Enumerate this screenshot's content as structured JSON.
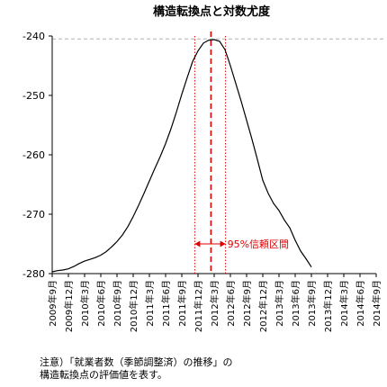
{
  "chart_data": {
    "type": "line",
    "title": "構造転換点と対数尤度",
    "xlabel": "",
    "ylabel": "",
    "ylim": [
      -280,
      -240
    ],
    "yticks": [
      -240,
      -250,
      -260,
      -270,
      -280
    ],
    "ytick_labels": [
      "-240",
      "-250",
      "-260",
      "-270",
      "-280"
    ],
    "xlim": [
      0,
      60
    ],
    "xticks": [
      {
        "i": 0,
        "label": "2009年9月"
      },
      {
        "i": 3,
        "label": "2009年12月"
      },
      {
        "i": 6,
        "label": "2010年3月"
      },
      {
        "i": 9,
        "label": "2010年6月"
      },
      {
        "i": 12,
        "label": "2010年9月"
      },
      {
        "i": 15,
        "label": "2010年12月"
      },
      {
        "i": 18,
        "label": "2011年3月"
      },
      {
        "i": 21,
        "label": "2011年6月"
      },
      {
        "i": 24,
        "label": "2011年9月"
      },
      {
        "i": 27,
        "label": "2011年12月"
      },
      {
        "i": 30,
        "label": "2012年3月"
      },
      {
        "i": 33,
        "label": "2012年6月"
      },
      {
        "i": 36,
        "label": "2012年9月"
      },
      {
        "i": 39,
        "label": "2012年12月"
      },
      {
        "i": 42,
        "label": "2013年3月"
      },
      {
        "i": 45,
        "label": "2013年6月"
      },
      {
        "i": 48,
        "label": "2013年9月"
      },
      {
        "i": 51,
        "label": "2013年12月"
      },
      {
        "i": 54,
        "label": "2014年3月"
      },
      {
        "i": 57,
        "label": "2014年6月"
      },
      {
        "i": 60,
        "label": "2014年9月"
      }
    ],
    "series": [
      {
        "color": "#000000",
        "points": [
          [
            0,
            -279.7
          ],
          [
            1,
            -279.5
          ],
          [
            2,
            -279.4
          ],
          [
            3,
            -279.2
          ],
          [
            4,
            -278.8
          ],
          [
            5,
            -278.3
          ],
          [
            6,
            -277.9
          ],
          [
            7,
            -277.6
          ],
          [
            8,
            -277.3
          ],
          [
            9,
            -276.9
          ],
          [
            10,
            -276.3
          ],
          [
            11,
            -275.5
          ],
          [
            12,
            -274.6
          ],
          [
            13,
            -273.5
          ],
          [
            14,
            -272.1
          ],
          [
            15,
            -270.4
          ],
          [
            16,
            -268.5
          ],
          [
            17,
            -266.5
          ],
          [
            18,
            -264.4
          ],
          [
            19,
            -262.3
          ],
          [
            20,
            -260.3
          ],
          [
            21,
            -258.1
          ],
          [
            22,
            -255.6
          ],
          [
            23,
            -252.8
          ],
          [
            24,
            -249.8
          ],
          [
            25,
            -247.0
          ],
          [
            26,
            -244.3
          ],
          [
            27,
            -242.5
          ],
          [
            28,
            -241.2
          ],
          [
            29,
            -240.7
          ],
          [
            30,
            -240.6
          ],
          [
            31,
            -240.9
          ],
          [
            32,
            -242.3
          ],
          [
            33,
            -245.0
          ],
          [
            34,
            -248.0
          ],
          [
            35,
            -251.0
          ],
          [
            36,
            -254.2
          ],
          [
            37,
            -257.4
          ],
          [
            38,
            -260.8
          ],
          [
            39,
            -264.3
          ],
          [
            40,
            -266.5
          ],
          [
            41,
            -268.2
          ],
          [
            42,
            -269.4
          ],
          [
            43,
            -271.0
          ],
          [
            44,
            -272.3
          ],
          [
            45,
            -274.4
          ],
          [
            46,
            -276.2
          ],
          [
            47,
            -277.5
          ],
          [
            48,
            -278.9
          ]
        ]
      }
    ],
    "reference_line": {
      "y": -240.5,
      "style": "dashed",
      "color": "#b0b0b0"
    },
    "break_point": {
      "x": 29.4,
      "color": "#e00000",
      "style": "dashed"
    },
    "interval": {
      "x_low": 26.4,
      "x_high": 32.1,
      "color": "#e00000",
      "style": "dotted",
      "label": "95%信頼区間",
      "label_y": -275
    }
  },
  "note": {
    "line1": "注意）「就業者数（季節調整済）の推移」の",
    "line2": "構造転換点の評価値を表す。"
  }
}
